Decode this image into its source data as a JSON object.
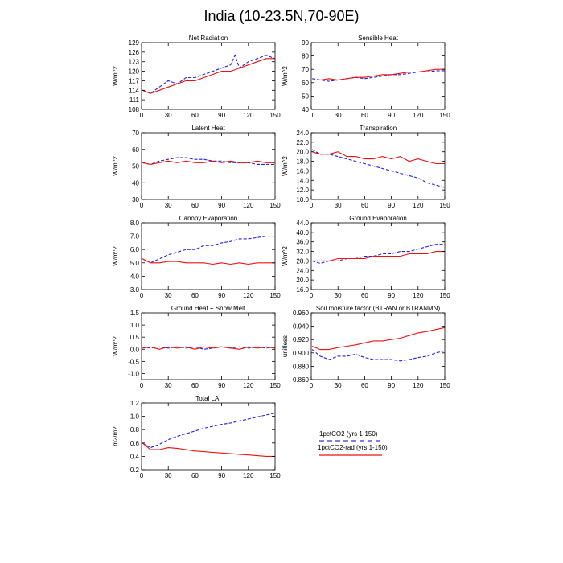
{
  "title": "India (10-23.5N,70-90E)",
  "legend": {
    "entries": [
      {
        "label": "1pctCO2 (yrs 1-150)",
        "color": "#3333dd",
        "style": "dashed"
      },
      {
        "label": "1pctCO2-rad (yrs 1-150)",
        "color": "#ee1111",
        "style": "solid"
      }
    ]
  },
  "colors": {
    "blue": "#2222dd",
    "red": "#ee1111"
  },
  "chart_data": [
    {
      "type": "line",
      "title": "Net Radiation",
      "ylabel": "W/m^2",
      "xlim": [
        0,
        150
      ],
      "ylim": [
        108,
        129
      ],
      "xticks": [
        "0",
        "30",
        "60",
        "90",
        "120",
        "150"
      ],
      "yticks": [
        "108",
        "111",
        "114",
        "117",
        "120",
        "123",
        "126",
        "129"
      ],
      "series": [
        {
          "name": "1pctCO2 (yrs 1-150)",
          "color": "#2222dd",
          "style": "dashed",
          "x": [
            1,
            10,
            20,
            30,
            40,
            50,
            60,
            70,
            80,
            90,
            100,
            105,
            110,
            120,
            130,
            140,
            150
          ],
          "values": [
            114,
            113,
            115,
            117,
            116,
            118,
            118,
            119,
            120,
            121,
            122,
            125,
            121,
            123,
            124,
            125,
            124
          ]
        },
        {
          "name": "1pctCO2-rad (yrs 1-150)",
          "color": "#ee1111",
          "style": "solid",
          "x": [
            1,
            10,
            20,
            30,
            40,
            50,
            60,
            70,
            80,
            90,
            100,
            110,
            120,
            130,
            140,
            150
          ],
          "values": [
            114,
            113,
            114,
            115,
            116,
            117,
            117,
            118,
            119,
            120,
            120,
            121,
            122,
            123,
            124,
            124
          ]
        }
      ]
    },
    {
      "type": "line",
      "title": "Sensible Heat",
      "ylabel": "W/m^2",
      "xlim": [
        0,
        150
      ],
      "ylim": [
        40,
        90
      ],
      "xticks": [
        "0",
        "30",
        "60",
        "90",
        "120",
        "150"
      ],
      "yticks": [
        "40",
        "50",
        "60",
        "70",
        "80",
        "90"
      ],
      "series": [
        {
          "name": "1pctCO2 (yrs 1-150)",
          "color": "#2222dd",
          "style": "dashed",
          "x": [
            1,
            10,
            20,
            30,
            40,
            50,
            60,
            70,
            80,
            90,
            100,
            110,
            120,
            130,
            140,
            150
          ],
          "values": [
            63,
            62,
            61,
            62,
            63,
            64,
            63,
            64,
            65,
            66,
            66,
            67,
            68,
            68,
            69,
            69
          ]
        },
        {
          "name": "1pctCO2-rad (yrs 1-150)",
          "color": "#ee1111",
          "style": "solid",
          "x": [
            1,
            10,
            20,
            30,
            40,
            50,
            60,
            70,
            80,
            90,
            100,
            110,
            120,
            130,
            140,
            150
          ],
          "values": [
            62,
            62,
            63,
            62,
            63,
            64,
            64,
            65,
            66,
            66,
            67,
            68,
            68,
            69,
            70,
            70
          ]
        }
      ]
    },
    {
      "type": "line",
      "title": "Latent Heat",
      "ylabel": "W/m^2",
      "xlim": [
        0,
        150
      ],
      "ylim": [
        30,
        70
      ],
      "xticks": [
        "0",
        "30",
        "60",
        "90",
        "120",
        "150"
      ],
      "yticks": [
        "30",
        "40",
        "50",
        "60",
        "70"
      ],
      "series": [
        {
          "name": "1pctCO2 (yrs 1-150)",
          "color": "#2222dd",
          "style": "dashed",
          "x": [
            1,
            10,
            20,
            30,
            40,
            50,
            60,
            70,
            80,
            90,
            100,
            110,
            120,
            130,
            140,
            150
          ],
          "values": [
            52,
            51,
            53,
            54,
            55,
            55,
            54,
            54,
            53,
            53,
            52,
            52,
            52,
            51,
            51,
            51
          ]
        },
        {
          "name": "1pctCO2-rad (yrs 1-150)",
          "color": "#ee1111",
          "style": "solid",
          "x": [
            1,
            10,
            20,
            30,
            40,
            50,
            60,
            70,
            80,
            90,
            100,
            110,
            120,
            130,
            140,
            150
          ],
          "values": [
            52,
            51,
            52,
            53,
            52,
            53,
            52,
            52,
            53,
            52,
            53,
            52,
            52,
            53,
            52,
            52
          ]
        }
      ]
    },
    {
      "type": "line",
      "title": "Transpiration",
      "ylabel": "W/m^2",
      "xlim": [
        0,
        150
      ],
      "ylim": [
        10,
        24
      ],
      "xticks": [
        "0",
        "30",
        "60",
        "90",
        "120",
        "150"
      ],
      "yticks": [
        "10.0",
        "12.0",
        "14.0",
        "16.0",
        "18.0",
        "20.0",
        "22.0",
        "24.0"
      ],
      "series": [
        {
          "name": "1pctCO2 (yrs 1-150)",
          "color": "#2222dd",
          "style": "dashed",
          "x": [
            1,
            10,
            20,
            30,
            40,
            50,
            60,
            70,
            80,
            90,
            100,
            110,
            120,
            130,
            140,
            150
          ],
          "values": [
            20.5,
            19.5,
            19.5,
            19,
            18.5,
            18,
            17.5,
            17,
            16.5,
            16,
            15.5,
            15,
            14.5,
            13.5,
            13,
            12.5
          ]
        },
        {
          "name": "1pctCO2-rad (yrs 1-150)",
          "color": "#ee1111",
          "style": "solid",
          "x": [
            1,
            10,
            20,
            30,
            40,
            50,
            60,
            70,
            80,
            90,
            100,
            110,
            120,
            130,
            140,
            150
          ],
          "values": [
            20,
            19.5,
            19.5,
            20,
            19,
            19,
            18.5,
            18.5,
            19,
            18.5,
            19,
            18,
            18.5,
            18,
            17.5,
            17.5
          ]
        }
      ]
    },
    {
      "type": "line",
      "title": "Canopy Evaporation",
      "ylabel": "W/m^2",
      "xlim": [
        0,
        150
      ],
      "ylim": [
        3,
        8
      ],
      "xticks": [
        "0",
        "30",
        "60",
        "90",
        "120",
        "150"
      ],
      "yticks": [
        "3.0",
        "4.0",
        "5.0",
        "6.0",
        "7.0",
        "8.0"
      ],
      "series": [
        {
          "name": "1pctCO2 (yrs 1-150)",
          "color": "#2222dd",
          "style": "dashed",
          "x": [
            1,
            10,
            20,
            30,
            40,
            50,
            60,
            70,
            80,
            90,
            100,
            110,
            120,
            130,
            140,
            150
          ],
          "values": [
            5.3,
            5.0,
            5.3,
            5.6,
            5.8,
            6.0,
            6.0,
            6.3,
            6.3,
            6.5,
            6.6,
            6.8,
            6.8,
            6.9,
            7.0,
            7.0
          ]
        },
        {
          "name": "1pctCO2-rad (yrs 1-150)",
          "color": "#ee1111",
          "style": "solid",
          "x": [
            1,
            10,
            20,
            30,
            40,
            50,
            60,
            70,
            80,
            90,
            100,
            110,
            120,
            130,
            140,
            150
          ],
          "values": [
            5.3,
            5.0,
            5.0,
            5.1,
            5.1,
            5.0,
            5.0,
            5.0,
            4.9,
            5.0,
            4.9,
            5.0,
            4.9,
            5.0,
            5.0,
            5.0
          ]
        }
      ]
    },
    {
      "type": "line",
      "title": "Ground Evaporation",
      "ylabel": "W/m^2",
      "xlim": [
        0,
        150
      ],
      "ylim": [
        16,
        44
      ],
      "xticks": [
        "0",
        "30",
        "60",
        "90",
        "120",
        "150"
      ],
      "yticks": [
        "16.0",
        "20.0",
        "24.0",
        "28.0",
        "32.0",
        "36.0",
        "40.0",
        "44.0"
      ],
      "series": [
        {
          "name": "1pctCO2 (yrs 1-150)",
          "color": "#2222dd",
          "style": "dashed",
          "x": [
            1,
            10,
            20,
            30,
            40,
            50,
            60,
            70,
            80,
            90,
            100,
            110,
            120,
            130,
            140,
            150
          ],
          "values": [
            28,
            27,
            28,
            28,
            29,
            29,
            30,
            30,
            31,
            31,
            32,
            32,
            33,
            34,
            35,
            35
          ]
        },
        {
          "name": "1pctCO2-rad (yrs 1-150)",
          "color": "#ee1111",
          "style": "solid",
          "x": [
            1,
            10,
            20,
            30,
            40,
            50,
            60,
            70,
            80,
            90,
            100,
            110,
            120,
            130,
            140,
            150
          ],
          "values": [
            28,
            28,
            28,
            29,
            29,
            29,
            29,
            30,
            30,
            30,
            30,
            31,
            31,
            31,
            32,
            32
          ]
        }
      ]
    },
    {
      "type": "line",
      "title": "Ground Heat + Snow Melt",
      "ylabel": "W/m^2",
      "xlim": [
        0,
        150
      ],
      "ylim": [
        -1.25,
        1.5
      ],
      "xticks": [
        "0",
        "30",
        "60",
        "90",
        "120",
        "150"
      ],
      "yticks": [
        "-1.0",
        "-0.5",
        "0.0",
        "0.5",
        "1.0",
        "1.5"
      ],
      "series": [
        {
          "name": "1pctCO2 (yrs 1-150)",
          "color": "#2222dd",
          "style": "dashed",
          "x": [
            1,
            10,
            20,
            30,
            40,
            50,
            60,
            70,
            80,
            90,
            100,
            110,
            120,
            130,
            140,
            150
          ],
          "values": [
            0.1,
            0.05,
            0.1,
            0.05,
            0.1,
            0.05,
            0.1,
            0.0,
            0.05,
            0.1,
            0.05,
            0.1,
            0.05,
            0.1,
            0.05,
            0.1
          ]
        },
        {
          "name": "1pctCO2-rad (yrs 1-150)",
          "color": "#ee1111",
          "style": "solid",
          "x": [
            1,
            10,
            20,
            30,
            40,
            50,
            60,
            70,
            80,
            90,
            100,
            110,
            120,
            130,
            140,
            150
          ],
          "values": [
            0.05,
            0.1,
            0.0,
            0.1,
            0.05,
            0.1,
            0.0,
            0.1,
            0.05,
            0.1,
            0.05,
            0.0,
            0.1,
            0.05,
            0.1,
            0.05
          ]
        }
      ]
    },
    {
      "type": "line",
      "title": "Soil moisture factor (BTRAN or BTRANMN)",
      "ylabel": "unitless",
      "xlim": [
        0,
        150
      ],
      "ylim": [
        0.86,
        0.96
      ],
      "xticks": [
        "0",
        "30",
        "60",
        "90",
        "120",
        "150"
      ],
      "yticks": [
        "0.860",
        "0.880",
        "0.900",
        "0.920",
        "0.940",
        "0.960"
      ],
      "series": [
        {
          "name": "1pctCO2 (yrs 1-150)",
          "color": "#2222dd",
          "style": "dashed",
          "x": [
            1,
            10,
            20,
            30,
            40,
            50,
            60,
            70,
            80,
            90,
            100,
            110,
            120,
            130,
            140,
            150
          ],
          "values": [
            0.905,
            0.895,
            0.89,
            0.895,
            0.895,
            0.898,
            0.893,
            0.89,
            0.89,
            0.89,
            0.888,
            0.89,
            0.893,
            0.895,
            0.9,
            0.903
          ]
        },
        {
          "name": "1pctCO2-rad (yrs 1-150)",
          "color": "#ee1111",
          "style": "solid",
          "x": [
            1,
            10,
            20,
            30,
            40,
            50,
            60,
            70,
            80,
            90,
            100,
            110,
            120,
            130,
            140,
            150
          ],
          "values": [
            0.91,
            0.905,
            0.905,
            0.908,
            0.91,
            0.912,
            0.915,
            0.918,
            0.918,
            0.92,
            0.922,
            0.926,
            0.93,
            0.932,
            0.935,
            0.938
          ]
        }
      ]
    },
    {
      "type": "line",
      "title": "Total LAI",
      "ylabel": "m2/m2",
      "xlim": [
        0,
        150
      ],
      "ylim": [
        0.2,
        1.2
      ],
      "xticks": [
        "0",
        "30",
        "60",
        "90",
        "120",
        "150"
      ],
      "yticks": [
        "0.2",
        "0.4",
        "0.6",
        "0.8",
        "1.0",
        "1.2"
      ],
      "series": [
        {
          "name": "1pctCO2 (yrs 1-150)",
          "color": "#2222dd",
          "style": "dashed",
          "x": [
            1,
            10,
            20,
            30,
            40,
            50,
            60,
            70,
            80,
            90,
            100,
            110,
            120,
            130,
            140,
            150
          ],
          "values": [
            0.6,
            0.53,
            0.58,
            0.65,
            0.7,
            0.74,
            0.78,
            0.82,
            0.85,
            0.88,
            0.9,
            0.93,
            0.96,
            0.99,
            1.02,
            1.05
          ]
        },
        {
          "name": "1pctCO2-rad (yrs 1-150)",
          "color": "#ee1111",
          "style": "solid",
          "x": [
            1,
            10,
            20,
            30,
            40,
            50,
            60,
            70,
            80,
            90,
            100,
            110,
            120,
            130,
            140,
            150
          ],
          "values": [
            0.6,
            0.5,
            0.5,
            0.53,
            0.52,
            0.5,
            0.48,
            0.47,
            0.46,
            0.45,
            0.44,
            0.43,
            0.42,
            0.41,
            0.4,
            0.4
          ]
        }
      ]
    }
  ]
}
